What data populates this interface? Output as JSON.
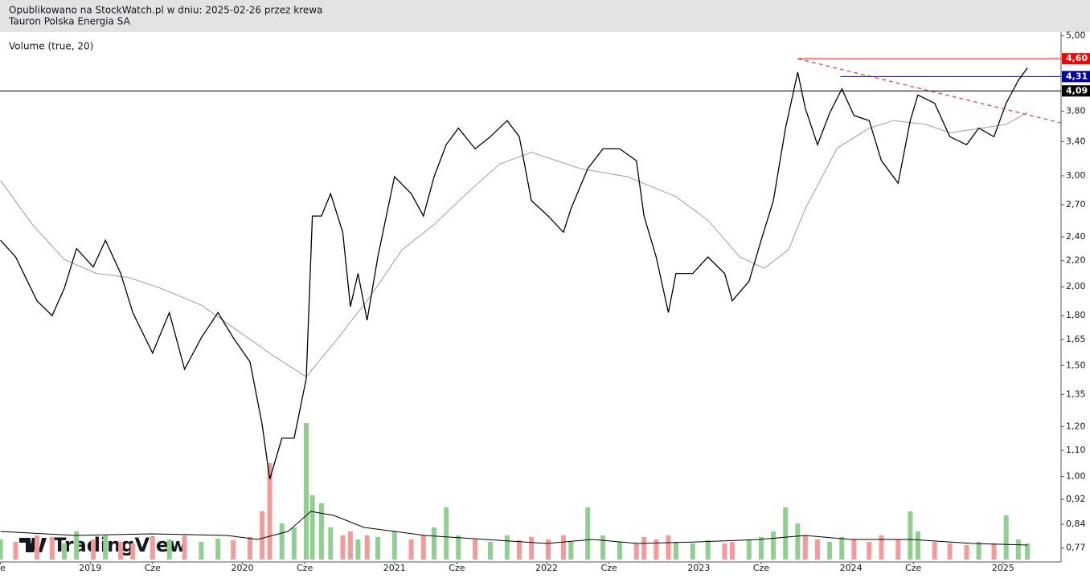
{
  "chart_data": {
    "type": "line",
    "header": [
      "Opublikowano na StockWatch.pl w dniu: 2025-02-26 przez krewa",
      "Tauron Polska Energia SA"
    ],
    "indicator_label": "Volume (true, 20)",
    "logo": "TradingView",
    "log_scale": true,
    "xlim": [
      2018.407,
      2025.381
    ],
    "ylim": [
      0.732,
      5.07
    ],
    "xticks": [
      {
        "value": 2018.41,
        "label": "ze"
      },
      {
        "value": 2019,
        "label": "2019"
      },
      {
        "value": 2019.41,
        "label": "Cze"
      },
      {
        "value": 2020,
        "label": "2020"
      },
      {
        "value": 2020.41,
        "label": "Cze"
      },
      {
        "value": 2021,
        "label": "2021"
      },
      {
        "value": 2021.41,
        "label": "Cze"
      },
      {
        "value": 2022,
        "label": "2022"
      },
      {
        "value": 2022.41,
        "label": "Cze"
      },
      {
        "value": 2023,
        "label": "2023"
      },
      {
        "value": 2023.41,
        "label": "Cze"
      },
      {
        "value": 2024,
        "label": "2024"
      },
      {
        "value": 2024.41,
        "label": "Cze"
      },
      {
        "value": 2025,
        "label": "2025"
      }
    ],
    "yticks": [
      {
        "value": 5.0,
        "label": "5,00"
      },
      {
        "value": 3.8,
        "label": "3,80"
      },
      {
        "value": 3.4,
        "label": "3,40"
      },
      {
        "value": 3.0,
        "label": "3,00"
      },
      {
        "value": 2.7,
        "label": "2,70"
      },
      {
        "value": 2.4,
        "label": "2,40"
      },
      {
        "value": 2.2,
        "label": "2,20"
      },
      {
        "value": 2.0,
        "label": "2,00"
      },
      {
        "value": 1.8,
        "label": "1,80"
      },
      {
        "value": 1.65,
        "label": "1,65"
      },
      {
        "value": 1.5,
        "label": "1,50"
      },
      {
        "value": 1.35,
        "label": "1,35"
      },
      {
        "value": 1.2,
        "label": "1,20"
      },
      {
        "value": 1.1,
        "label": "1,10"
      },
      {
        "value": 1.0,
        "label": "1,00"
      },
      {
        "value": 0.92,
        "label": "0,92"
      },
      {
        "value": 0.84,
        "label": "0,84"
      },
      {
        "value": 0.77,
        "label": "0,77"
      }
    ],
    "levels": [
      {
        "value": 4.6,
        "label": "4,60",
        "color": "#ff0000",
        "from": 2023.65
      },
      {
        "value": 4.31,
        "label": "4,31",
        "color": "#0000aa",
        "from": 2023.93
      },
      {
        "value": 4.09,
        "label": "4,09",
        "color": "#000000",
        "from": 2018.407
      }
    ],
    "trendline": {
      "color": "#f23645",
      "x": [
        2023.65,
        2025.38
      ],
      "y": [
        4.6,
        3.64
      ]
    },
    "series": [
      {
        "name": "Close",
        "color": "#000000",
        "x": [
          2018.41,
          2018.51,
          2018.65,
          2018.75,
          2018.83,
          2018.91,
          2019.02,
          2019.1,
          2019.2,
          2019.28,
          2019.41,
          2019.52,
          2019.62,
          2019.73,
          2019.84,
          2019.94,
          2020.05,
          2020.13,
          2020.18,
          2020.26,
          2020.34,
          2020.42,
          2020.46,
          2020.52,
          2020.58,
          2020.66,
          2020.71,
          2020.76,
          2020.82,
          2020.89,
          2021.0,
          2021.11,
          2021.19,
          2021.26,
          2021.34,
          2021.42,
          2021.53,
          2021.63,
          2021.74,
          2021.82,
          2021.9,
          2022.01,
          2022.11,
          2022.16,
          2022.27,
          2022.37,
          2022.48,
          2022.59,
          2022.64,
          2022.72,
          2022.8,
          2022.85,
          2022.96,
          2023.06,
          2023.17,
          2023.22,
          2023.33,
          2023.41,
          2023.49,
          2023.57,
          2023.65,
          2023.7,
          2023.78,
          2023.86,
          2023.94,
          2024.02,
          2024.12,
          2024.2,
          2024.31,
          2024.39,
          2024.44,
          2024.55,
          2024.65,
          2024.76,
          2024.84,
          2024.94,
          2025.02,
          2025.1,
          2025.16
        ],
        "values": [
          2.37,
          2.23,
          1.9,
          1.8,
          1.99,
          2.3,
          2.15,
          2.37,
          2.1,
          1.82,
          1.57,
          1.82,
          1.48,
          1.66,
          1.82,
          1.66,
          1.52,
          1.21,
          0.99,
          1.15,
          1.15,
          1.43,
          2.59,
          2.59,
          2.81,
          2.44,
          1.86,
          2.1,
          1.77,
          2.23,
          2.99,
          2.81,
          2.59,
          2.99,
          3.36,
          3.57,
          3.31,
          3.46,
          3.67,
          3.46,
          2.74,
          2.59,
          2.44,
          2.66,
          3.08,
          3.31,
          3.31,
          3.17,
          2.59,
          2.23,
          1.82,
          2.1,
          2.1,
          2.23,
          2.1,
          1.9,
          2.04,
          2.37,
          2.74,
          3.57,
          4.38,
          3.84,
          3.36,
          3.77,
          4.12,
          3.74,
          3.67,
          3.17,
          2.92,
          3.67,
          4.03,
          3.91,
          3.46,
          3.36,
          3.57,
          3.46,
          3.91,
          4.25,
          4.45
        ]
      },
      {
        "name": "MA",
        "color": "#9e9e9e",
        "x": [
          2018.41,
          2018.62,
          2018.83,
          2019.04,
          2019.25,
          2019.46,
          2019.73,
          2019.99,
          2020.21,
          2020.42,
          2020.63,
          2020.84,
          2021.05,
          2021.26,
          2021.48,
          2021.69,
          2021.9,
          2022.22,
          2022.53,
          2022.85,
          2023.06,
          2023.27,
          2023.43,
          2023.59,
          2023.7,
          2023.91,
          2024.12,
          2024.28,
          2024.49,
          2024.65,
          2024.86,
          2025.02,
          2025.16
        ],
        "values": [
          2.95,
          2.51,
          2.21,
          2.1,
          2.07,
          1.99,
          1.87,
          1.69,
          1.55,
          1.44,
          1.66,
          1.93,
          2.29,
          2.51,
          2.82,
          3.13,
          3.27,
          3.08,
          2.99,
          2.78,
          2.55,
          2.23,
          2.14,
          2.29,
          2.66,
          3.32,
          3.57,
          3.67,
          3.62,
          3.51,
          3.57,
          3.62,
          3.78
        ]
      }
    ],
    "volume": {
      "vlim": [
        0,
        200
      ],
      "up_color": "#8fcf8f",
      "down_color": "#f49a9a",
      "values": [
        25,
        22,
        30,
        28,
        20,
        35,
        25,
        30,
        22,
        20,
        28,
        25,
        30,
        22,
        26,
        24,
        28,
        60,
        120,
        45,
        40,
        170,
        80,
        70,
        40,
        30,
        35,
        25,
        30,
        28,
        35,
        25,
        30,
        40,
        65,
        30,
        25,
        22,
        30,
        24,
        28,
        25,
        30,
        22,
        65,
        30,
        22,
        20,
        28,
        25,
        30,
        22,
        20,
        24,
        20,
        22,
        25,
        28,
        35,
        65,
        45,
        30,
        25,
        22,
        28,
        25,
        22,
        30,
        25,
        60,
        35,
        22,
        20,
        18,
        22,
        20,
        55,
        25,
        20
      ]
    },
    "volume_ma": {
      "color": "#000000",
      "x": [
        2018.41,
        2018.9,
        2019.4,
        2019.9,
        2020.1,
        2020.3,
        2020.45,
        2020.6,
        2020.8,
        2021.2,
        2021.6,
        2022.0,
        2022.3,
        2022.6,
        2023.0,
        2023.4,
        2023.7,
        2024.0,
        2024.4,
        2024.8,
        2025.16
      ],
      "values": [
        35,
        30,
        32,
        30,
        25,
        35,
        60,
        55,
        40,
        30,
        25,
        20,
        25,
        20,
        22,
        25,
        30,
        25,
        25,
        20,
        18
      ]
    }
  }
}
